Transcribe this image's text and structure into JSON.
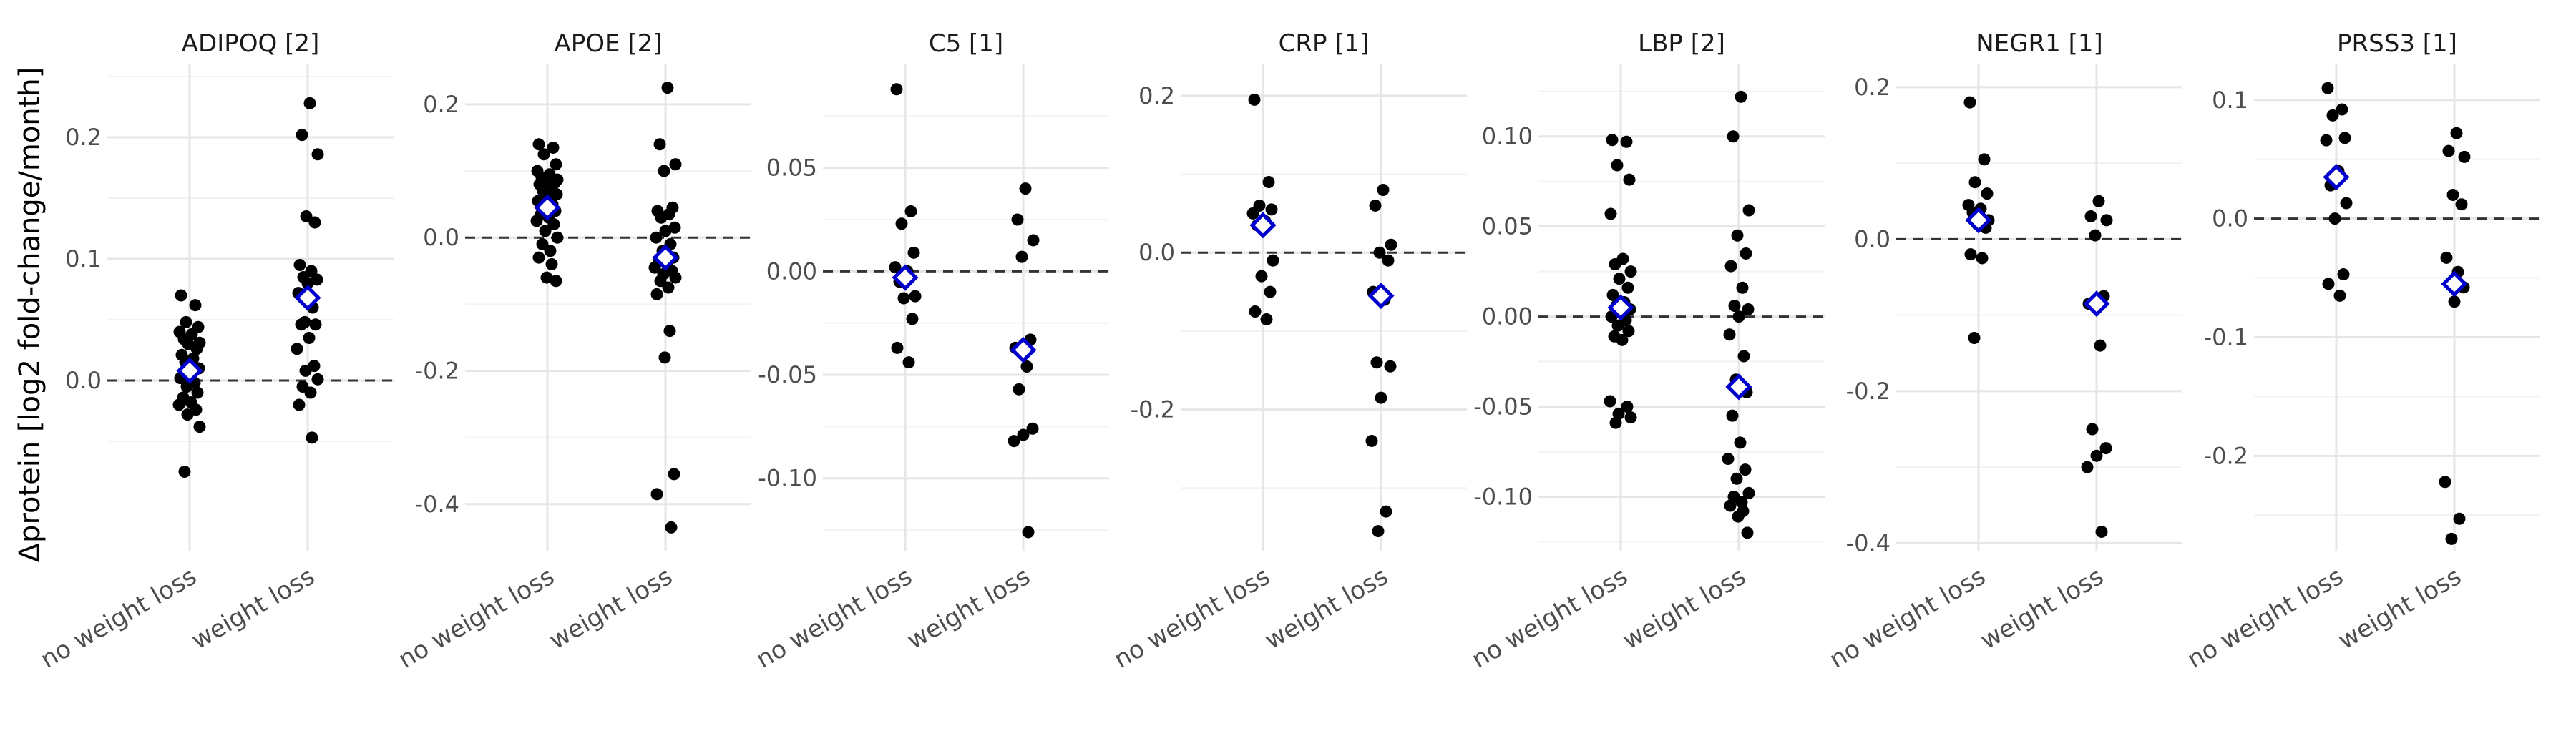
{
  "figure": {
    "ylabel": "Δprotein [log2 fold-change/month]"
  },
  "chart_data": {
    "type": "scatter",
    "ylabel": "Δprotein [log2 fold-change/month]",
    "categories": [
      "no weight loss",
      "weight loss"
    ],
    "point_color": "#000000",
    "mean_marker_color": "#0000cc",
    "reference_line": 0,
    "grid": true,
    "facets": [
      {
        "title": "ADIPOQ [2]",
        "ylim": [
          -0.14,
          0.26
        ],
        "yticks": [
          0.0,
          0.1,
          0.2
        ],
        "ytick_labels": [
          "0.0",
          "0.1",
          "0.2"
        ],
        "series": [
          {
            "category": "no weight loss",
            "mean": 0.008,
            "values": [
              0.07,
              0.062,
              0.048,
              0.044,
              0.04,
              0.038,
              0.034,
              0.031,
              0.03,
              0.026,
              0.021,
              0.018,
              0.015,
              0.01,
              0.006,
              0.002,
              -0.002,
              -0.005,
              -0.01,
              -0.014,
              -0.018,
              -0.02,
              -0.024,
              -0.028,
              -0.038,
              -0.075
            ]
          },
          {
            "category": "weight loss",
            "mean": 0.068,
            "values": [
              0.228,
              0.202,
              0.186,
              0.135,
              0.13,
              0.095,
              0.09,
              0.085,
              0.083,
              0.08,
              0.072,
              0.06,
              0.048,
              0.046,
              0.046,
              0.035,
              0.026,
              0.012,
              0.008,
              0.001,
              -0.005,
              -0.01,
              -0.02,
              -0.047
            ]
          }
        ]
      },
      {
        "title": "APOE [2]",
        "ylim": [
          -0.47,
          0.26
        ],
        "yticks": [
          -0.4,
          -0.2,
          0.0,
          0.2
        ],
        "ytick_labels": [
          "-0.4",
          "-0.2",
          "0.0",
          "0.2"
        ],
        "series": [
          {
            "category": "no weight loss",
            "mean": 0.045,
            "values": [
              0.14,
              0.135,
              0.125,
              0.11,
              0.1,
              0.095,
              0.09,
              0.087,
              0.085,
              0.082,
              0.08,
              0.075,
              0.07,
              0.065,
              0.06,
              0.055,
              0.05,
              0.045,
              0.04,
              0.035,
              0.03,
              0.025,
              0.02,
              0.01,
              0.0,
              -0.01,
              -0.02,
              -0.03,
              -0.04,
              -0.06,
              -0.065
            ]
          },
          {
            "category": "weight loss",
            "mean": -0.03,
            "values": [
              0.225,
              0.14,
              0.11,
              0.1,
              0.045,
              0.04,
              0.035,
              0.03,
              0.015,
              0.01,
              0.0,
              -0.01,
              -0.02,
              -0.03,
              -0.035,
              -0.04,
              -0.045,
              -0.05,
              -0.055,
              -0.06,
              -0.065,
              -0.075,
              -0.085,
              -0.14,
              -0.18,
              -0.355,
              -0.385,
              -0.435
            ]
          }
        ]
      },
      {
        "title": "C5 [1]",
        "ylim": [
          -0.135,
          0.1
        ],
        "yticks": [
          -0.1,
          -0.05,
          0.0,
          0.05
        ],
        "ytick_labels": [
          "-0.10",
          "-0.05",
          "0.00",
          "0.05"
        ],
        "series": [
          {
            "category": "no weight loss",
            "mean": -0.003,
            "values": [
              0.088,
              0.029,
              0.023,
              0.009,
              0.002,
              0.0,
              -0.005,
              -0.012,
              -0.013,
              -0.023,
              -0.037,
              -0.044
            ]
          },
          {
            "category": "weight loss",
            "mean": -0.038,
            "values": [
              0.04,
              0.025,
              0.015,
              0.007,
              -0.033,
              -0.037,
              -0.046,
              -0.057,
              -0.076,
              -0.079,
              -0.082,
              -0.126
            ]
          }
        ]
      },
      {
        "title": "CRP [1]",
        "ylim": [
          -0.38,
          0.24
        ],
        "yticks": [
          -0.2,
          0.0,
          0.2
        ],
        "ytick_labels": [
          "-0.2",
          "0.0",
          "0.2"
        ],
        "series": [
          {
            "category": "no weight loss",
            "mean": 0.035,
            "values": [
              0.195,
              0.09,
              0.06,
              0.055,
              0.05,
              0.04,
              0.035,
              -0.01,
              -0.03,
              -0.05,
              -0.075,
              -0.085
            ]
          },
          {
            "category": "weight loss",
            "mean": -0.055,
            "values": [
              0.08,
              0.06,
              0.01,
              0.0,
              -0.01,
              -0.05,
              -0.06,
              -0.14,
              -0.145,
              -0.185,
              -0.24,
              -0.33,
              -0.355
            ]
          }
        ]
      },
      {
        "title": "LBP [2]",
        "ylim": [
          -0.13,
          0.14
        ],
        "yticks": [
          -0.1,
          -0.05,
          0.0,
          0.05,
          0.1
        ],
        "ytick_labels": [
          "-0.10",
          "-0.05",
          "0.00",
          "0.05",
          "0.10"
        ],
        "series": [
          {
            "category": "no weight loss",
            "mean": 0.005,
            "values": [
              0.098,
              0.097,
              0.084,
              0.076,
              0.057,
              0.032,
              0.029,
              0.025,
              0.021,
              0.016,
              0.012,
              0.008,
              0.006,
              0.004,
              0.002,
              0.0,
              -0.002,
              -0.005,
              -0.008,
              -0.011,
              -0.013,
              -0.047,
              -0.05,
              -0.054,
              -0.056,
              -0.059
            ]
          },
          {
            "category": "weight loss",
            "mean": -0.039,
            "values": [
              0.122,
              0.1,
              0.059,
              0.045,
              0.035,
              0.028,
              0.016,
              0.006,
              0.004,
              0.0,
              -0.01,
              -0.022,
              -0.035,
              -0.042,
              -0.055,
              -0.07,
              -0.079,
              -0.085,
              -0.09,
              -0.098,
              -0.1,
              -0.103,
              -0.105,
              -0.108,
              -0.111,
              -0.12
            ]
          }
        ]
      },
      {
        "title": "NEGR1 [1]",
        "ylim": [
          -0.41,
          0.23
        ],
        "yticks": [
          -0.4,
          -0.2,
          0.0,
          0.2
        ],
        "ytick_labels": [
          "-0.4",
          "-0.2",
          "0.0",
          "0.2"
        ],
        "series": [
          {
            "category": "no weight loss",
            "mean": 0.025,
            "values": [
              0.18,
              0.105,
              0.075,
              0.06,
              0.045,
              0.04,
              0.035,
              0.025,
              0.02,
              0.015,
              -0.02,
              -0.025,
              -0.13
            ]
          },
          {
            "category": "weight loss",
            "mean": -0.085,
            "values": [
              0.05,
              0.03,
              0.025,
              0.005,
              -0.075,
              -0.085,
              -0.14,
              -0.25,
              -0.275,
              -0.285,
              -0.3,
              -0.385
            ]
          }
        ]
      },
      {
        "title": "PRSS3 [1]",
        "ylim": [
          -0.28,
          0.13
        ],
        "yticks": [
          -0.2,
          -0.1,
          0.0,
          0.1
        ],
        "ytick_labels": [
          "-0.2",
          "-0.1",
          "0.0",
          "0.1"
        ],
        "series": [
          {
            "category": "no weight loss",
            "mean": 0.035,
            "values": [
              0.11,
              0.092,
              0.087,
              0.068,
              0.066,
              0.04,
              0.028,
              0.013,
              0.0,
              -0.047,
              -0.055,
              -0.065
            ]
          },
          {
            "category": "weight loss",
            "mean": -0.055,
            "values": [
              0.072,
              0.057,
              0.052,
              0.02,
              0.012,
              -0.033,
              -0.045,
              -0.055,
              -0.058,
              -0.07,
              -0.222,
              -0.253,
              -0.27
            ]
          }
        ]
      }
    ]
  }
}
